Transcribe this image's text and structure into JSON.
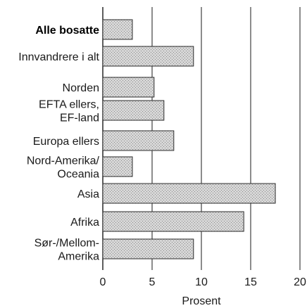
{
  "chart_data": {
    "type": "bar",
    "orientation": "horizontal",
    "categories": [
      [
        "Alle bosatte"
      ],
      [
        "Innvandrere i alt"
      ],
      [
        "Norden"
      ],
      [
        "EFTA ellers,",
        "EF-land"
      ],
      [
        "Europa ellers"
      ],
      [
        "Nord-Amerika/",
        "Oceania"
      ],
      [
        "Asia"
      ],
      [
        "Afrika"
      ],
      [
        "Sør-/Mellom-",
        "Amerika"
      ]
    ],
    "values": [
      3,
      9.2,
      5.2,
      6.2,
      7.2,
      3,
      17.5,
      14.3,
      9.2
    ],
    "bold_category_index": 0,
    "xlabel": "Prosent",
    "ylabel": "",
    "xlim": [
      0,
      20
    ],
    "xticks": [
      0,
      5,
      10,
      15,
      20
    ],
    "xtick_labels": [
      "0",
      "5",
      "10",
      "15",
      "20"
    ],
    "grid": "vertical",
    "legend": "none",
    "colors": {
      "bar_fill": "#d6d6d6",
      "bar_stroke": "#2a2a2a",
      "grid": "#1a1a1a"
    }
  }
}
